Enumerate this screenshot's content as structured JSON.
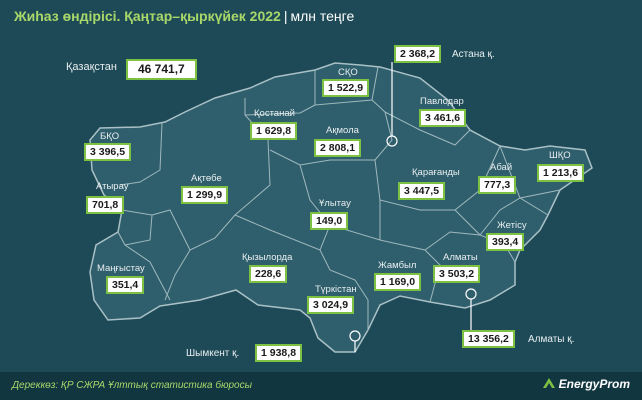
{
  "title": {
    "main": "Жиһаз өндірісі. Қаңтар–қыркүйек 2022",
    "separator": "|",
    "unit": "млн теңге"
  },
  "total": {
    "label": "Қазақстан",
    "value": "46 741,7"
  },
  "regions": [
    {
      "id": "bko",
      "label": "БҚО",
      "value": "3 396,5"
    },
    {
      "id": "atyrau",
      "label": "Атырау",
      "value": "701,8"
    },
    {
      "id": "mangystau",
      "label": "Маңғыстау",
      "value": "351,4"
    },
    {
      "id": "aktobe",
      "label": "Ақтөбе",
      "value": "1 299,9"
    },
    {
      "id": "kostanai",
      "label": "Қостанай",
      "value": "1 629,8"
    },
    {
      "id": "sko",
      "label": "СҚО",
      "value": "1 522,9"
    },
    {
      "id": "akmola",
      "label": "Ақмола",
      "value": "2 808,1"
    },
    {
      "id": "pavlodar",
      "label": "Павлодар",
      "value": "3 461,6"
    },
    {
      "id": "karagandy",
      "label": "Қарағанды",
      "value": "3 447,5"
    },
    {
      "id": "ulytau",
      "label": "Ұлытау",
      "value": "149,0"
    },
    {
      "id": "kyzylorda",
      "label": "Қызылорда",
      "value": "228,6"
    },
    {
      "id": "turkistan",
      "label": "Түркістан",
      "value": "3 024,9"
    },
    {
      "id": "zhambyl",
      "label": "Жамбыл",
      "value": "1 169,0"
    },
    {
      "id": "almaty",
      "label": "Алматы",
      "value": "3 503,2"
    },
    {
      "id": "zhetisu",
      "label": "Жетісу",
      "value": "393,4"
    },
    {
      "id": "abai",
      "label": "Абай",
      "value": "777,3"
    },
    {
      "id": "shko",
      "label": "ШҚО",
      "value": "1 213,6"
    }
  ],
  "cities": [
    {
      "id": "astana",
      "label": "Астана қ.",
      "value": "2 368,2"
    },
    {
      "id": "almaty-city",
      "label": "Алматы қ.",
      "value": "13 356,2"
    },
    {
      "id": "shymkent",
      "label": "Шымкент қ.",
      "value": "1 938,8"
    }
  ],
  "footer": {
    "source": "Дереккөз: ҚР СЖРА Ұлттық статистика бюросы",
    "logo": "EnergyProm"
  },
  "colors": {
    "background": "#1e4a57",
    "map_fill": "#2f5f6c",
    "border": "#9fb8be",
    "accent": "#7cc142",
    "title": "#a8d86a"
  }
}
